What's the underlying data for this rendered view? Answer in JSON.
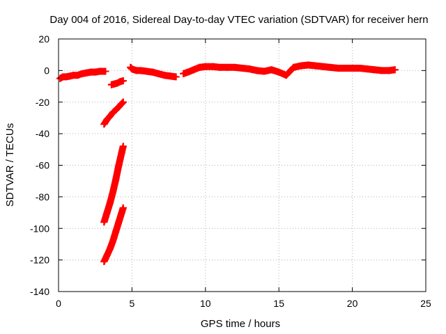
{
  "chart_data": {
    "type": "scatter",
    "title": "Day 004 of 2016, Sidereal Day-to-day VTEC variation (SDTVAR) for receiver hern",
    "xlabel": "GPS time / hours",
    "ylabel": "SDTVAR / TECUs",
    "xlim": [
      0,
      25
    ],
    "ylim": [
      -140,
      20
    ],
    "xticks": [
      "0",
      "5",
      "10",
      "15",
      "20",
      "25"
    ],
    "yticks": [
      "-140",
      "-120",
      "-100",
      "-80",
      "-60",
      "-40",
      "-20",
      "0",
      "20"
    ],
    "grid": true,
    "marker": "plus",
    "series_color": "#ff0000",
    "series": [
      {
        "name": "segment-1",
        "x": [
          0.1,
          0.3,
          0.5,
          0.8,
          1.0,
          1.3,
          1.6,
          1.9,
          2.2,
          2.5,
          2.8,
          3.0,
          3.2
        ],
        "y": [
          -5,
          -4,
          -4,
          -3.5,
          -3,
          -3,
          -2,
          -1.5,
          -1,
          -1,
          -0.5,
          -0.5,
          -0.5
        ]
      },
      {
        "name": "segment-2",
        "x": [
          3.6,
          3.8,
          4.0,
          4.2,
          4.4
        ],
        "y": [
          -9,
          -8.5,
          -8,
          -7,
          -6.5
        ]
      },
      {
        "name": "segment-3",
        "x": [
          3.1,
          3.3,
          3.5,
          3.7,
          3.9,
          4.1,
          4.3,
          4.4
        ],
        "y": [
          -34,
          -31,
          -29,
          -26.5,
          -25,
          -23,
          -21,
          -20
        ]
      },
      {
        "name": "segment-4",
        "x": [
          3.1,
          3.3,
          3.5,
          3.7,
          3.9,
          4.1,
          4.3,
          4.4
        ],
        "y": [
          -96,
          -90,
          -84,
          -77,
          -69,
          -60,
          -52,
          -48
        ]
      },
      {
        "name": "segment-5",
        "x": [
          3.1,
          3.3,
          3.5,
          3.7,
          3.9,
          4.1,
          4.3,
          4.4
        ],
        "y": [
          -121,
          -117,
          -113,
          -108,
          -102,
          -96,
          -90,
          -87
        ]
      },
      {
        "name": "segment-6",
        "x": [
          4.9,
          5.0,
          5.3,
          5.6,
          6.0,
          6.4,
          6.8,
          7.2,
          7.6,
          8.0
        ],
        "y": [
          2,
          1,
          0,
          0,
          -0.5,
          -1,
          -2,
          -3,
          -3.5,
          -4
        ]
      },
      {
        "name": "segment-7",
        "x": [
          8.5,
          8.8,
          9.2,
          9.6,
          10.0,
          10.5,
          11.0,
          11.5,
          12.0,
          12.5,
          13.0,
          13.5,
          14.0,
          14.5,
          15.0,
          15.5,
          15.8,
          16.0,
          16.5,
          17.0,
          17.5,
          18.0,
          18.5,
          19.0,
          19.5,
          20.0,
          20.5,
          21.0,
          21.5,
          22.0,
          22.5,
          22.9
        ],
        "y": [
          -2,
          -1,
          0.5,
          2,
          2.5,
          2.5,
          2,
          2,
          2,
          1.5,
          1,
          0,
          -0.5,
          0.5,
          -1,
          -3,
          0,
          2,
          3,
          3.5,
          3,
          2.5,
          2,
          1.5,
          1.5,
          1.5,
          1.5,
          1,
          0.5,
          0,
          0,
          0.5
        ]
      }
    ]
  }
}
